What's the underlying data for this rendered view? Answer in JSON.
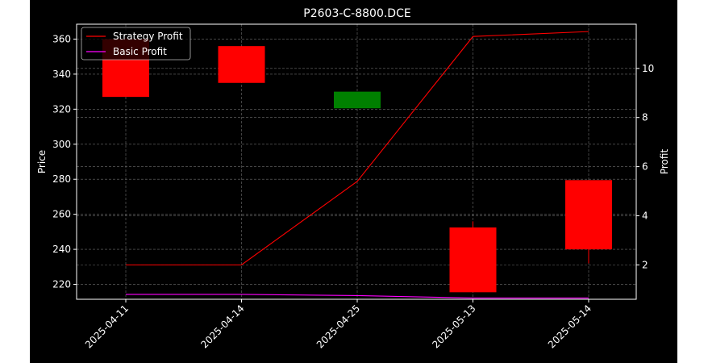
{
  "chart_data": {
    "type": "candlestick+line",
    "title": "P2603-C-8800.DCE",
    "ylabel_left": "Price",
    "ylabel_right": "Profit",
    "xlabel": "",
    "categories": [
      "2025-04-11",
      "2025-04-14",
      "2025-04-25",
      "2025-05-13",
      "2025-05-14"
    ],
    "price_ylim": [
      211.5,
      368.5
    ],
    "price_ticks": [
      220,
      240,
      260,
      280,
      300,
      320,
      340,
      360
    ],
    "profit_ylim": [
      0.6,
      11.8
    ],
    "profit_ticks": [
      2,
      4,
      6,
      8,
      10
    ],
    "candles": [
      {
        "date": "2025-04-11",
        "open": 360.0,
        "close": 327.0,
        "high": 361.0,
        "low": 327.0
      },
      {
        "date": "2025-04-14",
        "open": 356.0,
        "close": 335.0,
        "high": 356.0,
        "low": 335.0
      },
      {
        "date": "2025-04-25",
        "open": 320.5,
        "close": 330.0,
        "high": 330.0,
        "low": 320.5
      },
      {
        "date": "2025-05-13",
        "open": 252.5,
        "close": 215.5,
        "high": 256.0,
        "low": 215.5
      },
      {
        "date": "2025-05-14",
        "open": 279.5,
        "close": 240.0,
        "high": 279.5,
        "low": 232.0
      }
    ],
    "series": [
      {
        "name": "Strategy Profit",
        "axis": "right",
        "color": "#ff0000",
        "values": [
          2.0,
          2.0,
          5.4,
          11.3,
          11.5
        ]
      },
      {
        "name": "Basic Profit",
        "axis": "right",
        "color": "#ff00ff",
        "values": [
          0.8,
          0.8,
          0.75,
          0.65,
          0.65
        ]
      }
    ],
    "legend_position": "top-left",
    "grid": true,
    "colors": {
      "background": "#000000",
      "up": "#008000",
      "down": "#ff0000",
      "axis": "#ffffff",
      "grid": "#6e6e6e"
    }
  }
}
